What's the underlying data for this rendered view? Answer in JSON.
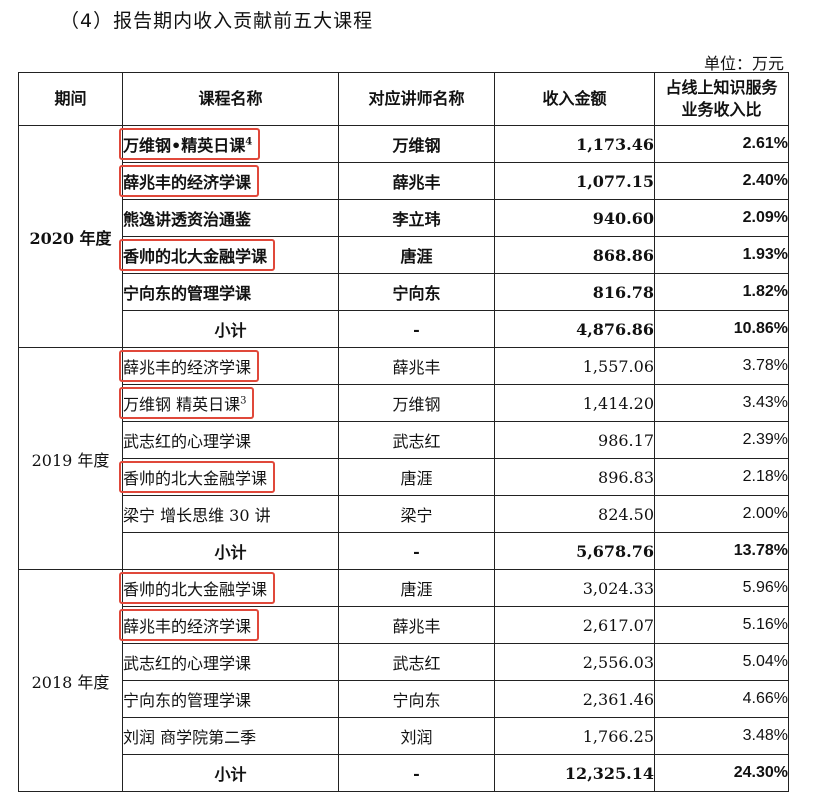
{
  "heading": "（4）报告期内收入贡献前五大课程",
  "unit": "单位：万元",
  "columns": [
    "期间",
    "课程名称",
    "对应讲师名称",
    "收入金额",
    "占线上知识服务业务收入比"
  ],
  "columns_line2_split": {
    "ratio_line1": "占线上知识服务",
    "ratio_line2": "业务收入比"
  },
  "highlight_color": "#e0483a",
  "years": [
    {
      "period": "2020 年度",
      "rows": [
        {
          "course": "万维钢•精英日课",
          "sup": "4",
          "teacher": "万维钢",
          "amount": "1,173.46",
          "ratio": "2.61%",
          "highlight": true
        },
        {
          "course": "薛兆丰的经济学课",
          "sup": "",
          "teacher": "薛兆丰",
          "amount": "1,077.15",
          "ratio": "2.40%",
          "highlight": true
        },
        {
          "course": "熊逸讲透资治通鉴",
          "sup": "",
          "teacher": "李立玮",
          "amount": "940.60",
          "ratio": "2.09%",
          "highlight": false
        },
        {
          "course": "香帅的北大金融学课",
          "sup": "",
          "teacher": "唐涯",
          "amount": "868.86",
          "ratio": "1.93%",
          "highlight": true
        },
        {
          "course": "宁向东的管理学课",
          "sup": "",
          "teacher": "宁向东",
          "amount": "816.78",
          "ratio": "1.82%",
          "highlight": false
        }
      ],
      "subtotal": {
        "label": "小计",
        "teacher": "-",
        "amount": "4,876.86",
        "ratio": "10.86%"
      }
    },
    {
      "period": "2019 年度",
      "rows": [
        {
          "course": "薛兆丰的经济学课",
          "sup": "",
          "teacher": "薛兆丰",
          "amount": "1,557.06",
          "ratio": "3.78%",
          "highlight": true
        },
        {
          "course": "万维钢 精英日课",
          "sup": "3",
          "teacher": "万维钢",
          "amount": "1,414.20",
          "ratio": "3.43%",
          "highlight": true
        },
        {
          "course": "武志红的心理学课",
          "sup": "",
          "teacher": "武志红",
          "amount": "986.17",
          "ratio": "2.39%",
          "highlight": false
        },
        {
          "course": "香帅的北大金融学课",
          "sup": "",
          "teacher": "唐涯",
          "amount": "896.83",
          "ratio": "2.18%",
          "highlight": true
        },
        {
          "course": "梁宁 增长思维 30 讲",
          "sup": "",
          "teacher": "梁宁",
          "amount": "824.50",
          "ratio": "2.00%",
          "highlight": false
        }
      ],
      "subtotal": {
        "label": "小计",
        "teacher": "-",
        "amount": "5,678.76",
        "ratio": "13.78%"
      }
    },
    {
      "period": "2018 年度",
      "rows": [
        {
          "course": "香帅的北大金融学课",
          "sup": "",
          "teacher": "唐涯",
          "amount": "3,024.33",
          "ratio": "5.96%",
          "highlight": true
        },
        {
          "course": "薛兆丰的经济学课",
          "sup": "",
          "teacher": "薛兆丰",
          "amount": "2,617.07",
          "ratio": "5.16%",
          "highlight": true
        },
        {
          "course": "武志红的心理学课",
          "sup": "",
          "teacher": "武志红",
          "amount": "2,556.03",
          "ratio": "5.04%",
          "highlight": false
        },
        {
          "course": "宁向东的管理学课",
          "sup": "",
          "teacher": "宁向东",
          "amount": "2,361.46",
          "ratio": "4.66%",
          "highlight": false
        },
        {
          "course": "刘润 商学院第二季",
          "sup": "",
          "teacher": "刘润",
          "amount": "1,766.25",
          "ratio": "3.48%",
          "highlight": false
        }
      ],
      "subtotal": {
        "label": "小计",
        "teacher": "-",
        "amount": "12,325.14",
        "ratio": "24.30%"
      }
    }
  ]
}
